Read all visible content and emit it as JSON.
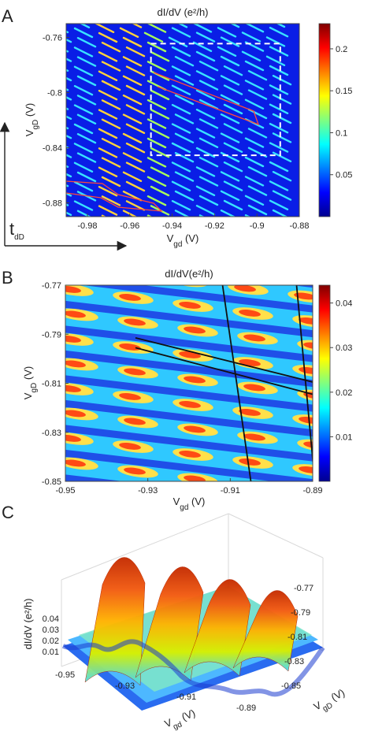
{
  "figure": {
    "panels": [
      "A",
      "B",
      "C"
    ]
  },
  "chart_data": [
    {
      "panel": "A",
      "type": "heatmap",
      "title": "dI/dV (e²/h)",
      "xlabel": "V_gd (V)",
      "ylabel": "V_gD (V)",
      "xlim": [
        -0.99,
        -0.88
      ],
      "ylim": [
        -0.89,
        -0.75
      ],
      "xticks": [
        "-0.98",
        "-0.96",
        "-0.94",
        "-0.92",
        "-0.9",
        "-0.88"
      ],
      "yticks": [
        "-0.76",
        "-0.8",
        "-0.84",
        "-0.88"
      ],
      "colorbar": {
        "ticks": [
          "0.05",
          "0.1",
          "0.15",
          "0.2"
        ],
        "range": [
          0,
          0.23
        ]
      },
      "annotations": {
        "dashed_box": {
          "x": [
            -0.95,
            -0.889
          ],
          "y": [
            -0.8455,
            -0.7645
          ]
        },
        "axis_arrow_label": "t_dD"
      }
    },
    {
      "panel": "B",
      "type": "heatmap",
      "title": "dI/dV(e²/h)",
      "xlabel": "V_gd (V)",
      "ylabel": "V_gD (V)",
      "xlim": [
        -0.95,
        -0.89
      ],
      "ylim": [
        -0.85,
        -0.77
      ],
      "xticks": [
        "-0.95",
        "-0.93",
        "-0.91",
        "-0.89"
      ],
      "yticks": [
        "-0.77",
        "-0.79",
        "-0.81",
        "-0.83",
        "-0.85"
      ],
      "colorbar": {
        "ticks": [
          "0.01",
          "0.02",
          "0.03",
          "0.04"
        ],
        "range": [
          0,
          0.044
        ]
      },
      "overlay_lines": [
        {
          "x": [
            -0.933,
            -0.89
          ],
          "y": [
            -0.7915,
            -0.8095
          ]
        },
        {
          "x": [
            -0.933,
            -0.89
          ],
          "y": [
            -0.7955,
            -0.8145
          ]
        },
        {
          "x": [
            -0.912,
            -0.905
          ],
          "y": [
            -0.7685,
            -0.85
          ]
        },
        {
          "x": [
            -0.894,
            -0.8895
          ],
          "y": [
            -0.7685,
            -0.85
          ]
        }
      ]
    },
    {
      "panel": "C",
      "type": "area",
      "title": "",
      "xlabel": "V_gd (V)",
      "ylabel": "dI/dV (e²/h)",
      "zlabel": "V_gD (V)",
      "xticks": [
        "-0.95",
        "-0.93",
        "-0.91",
        "-0.89"
      ],
      "yticks": [
        "0.01",
        "0.02",
        "0.03",
        "0.04"
      ],
      "zticks": [
        "-0.77",
        "-0.79",
        "-0.81",
        "-0.83",
        "-0.85"
      ],
      "peaks_x": [
        -0.943,
        -0.928,
        -0.913,
        -0.898
      ]
    }
  ]
}
